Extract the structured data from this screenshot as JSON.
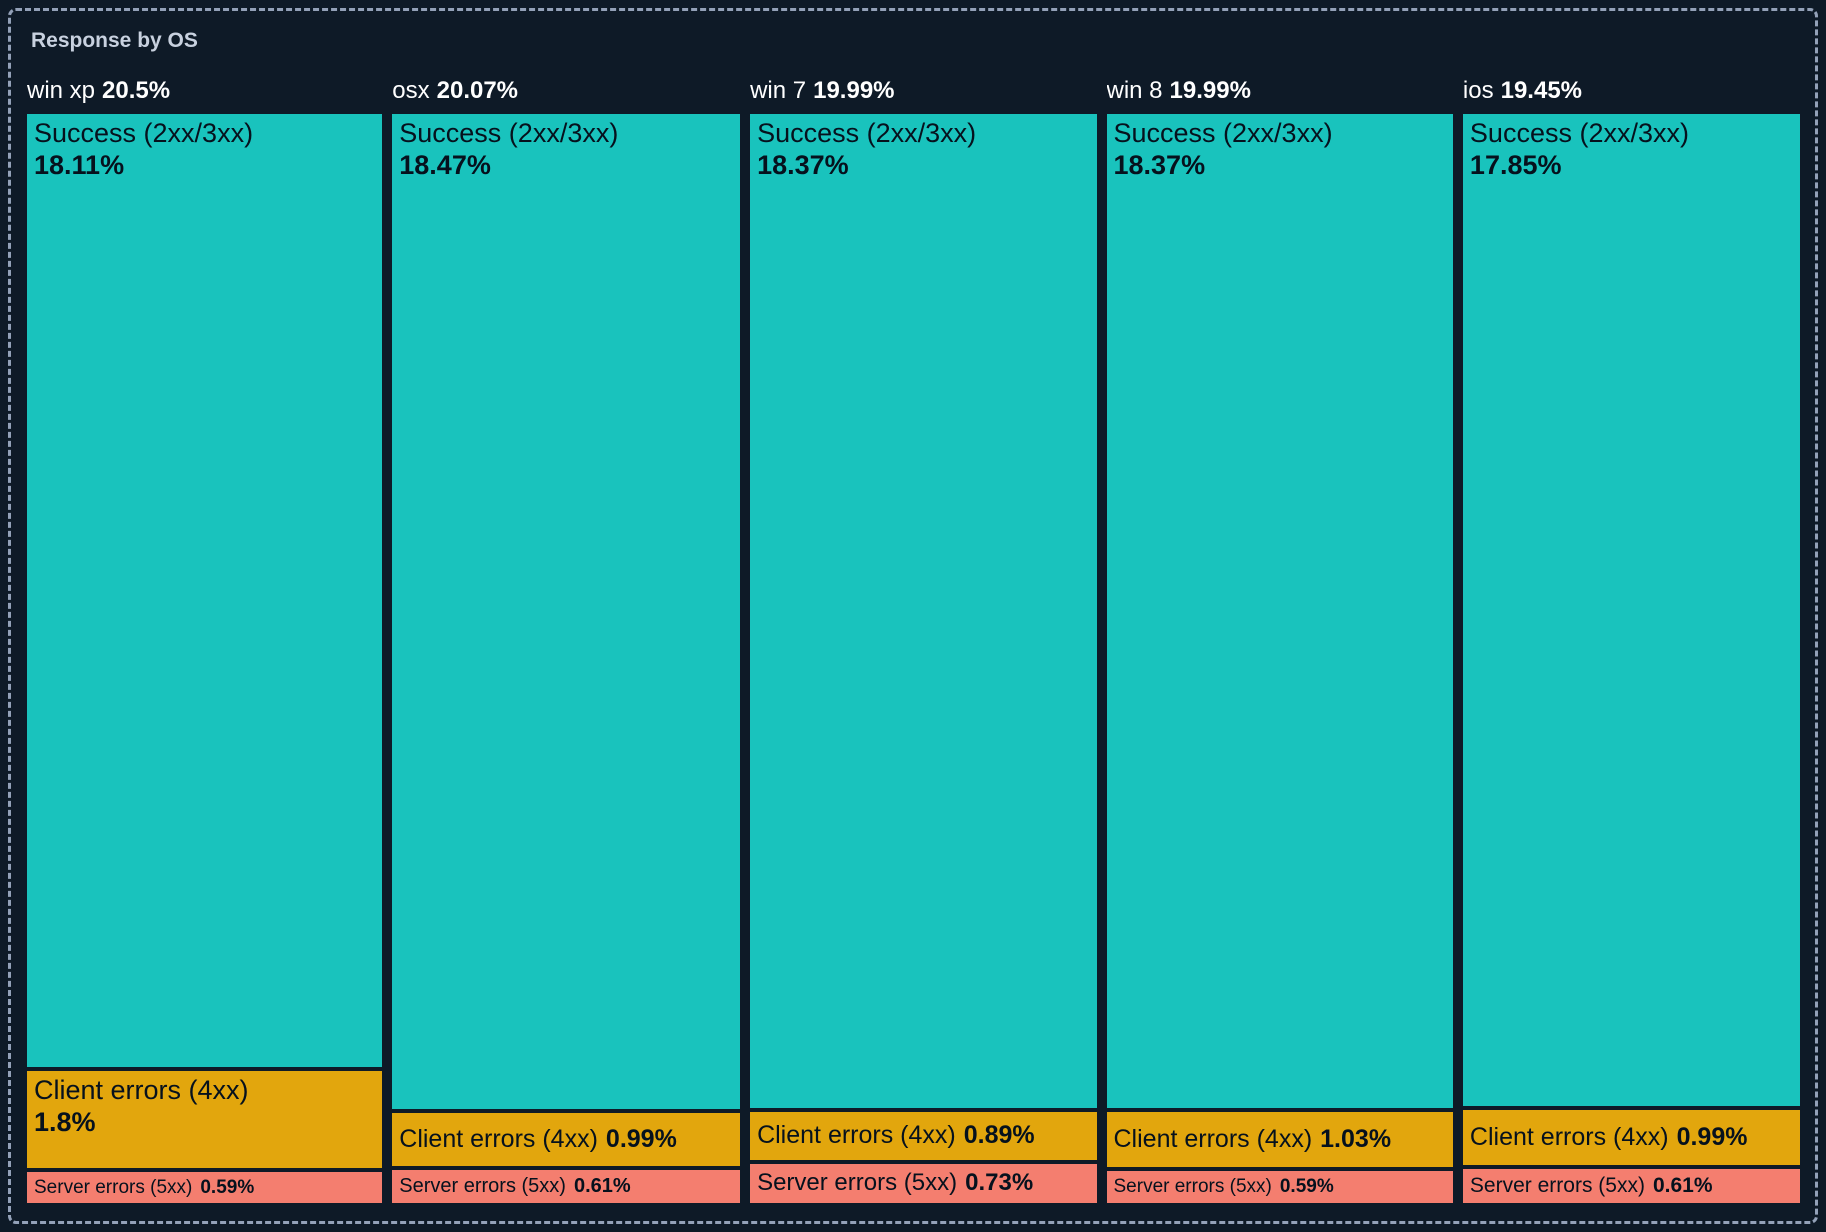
{
  "panel": {
    "title": "Response by OS",
    "border_style": "dashed-selection"
  },
  "colors": {
    "background": "#0e1a27",
    "panel_border": "#93a1b8",
    "title_text": "#c8d1df",
    "header_text": "#ffffff",
    "tile_text": "#06111d",
    "success": "#19c3bd",
    "client": "#e2a60d",
    "server": "#f47e6f"
  },
  "chart_data": {
    "type": "treemap",
    "title": "Response by OS",
    "legend_position": "none",
    "grid": false,
    "layout": "one column per OS; column width proportional to OS share; stacked tiles per response class, height proportional to value",
    "series_labels": [
      "Success (2xx/3xx)",
      "Client errors (4xx)",
      "Server errors (5xx)"
    ],
    "value_unit": "%",
    "columns": [
      {
        "label": "win xp",
        "total": 20.5,
        "total_display": "20.5%",
        "segments": [
          {
            "name": "Success (2xx/3xx)",
            "key": "success",
            "value": 18.11,
            "display": "18.11%"
          },
          {
            "name": "Client errors (4xx)",
            "key": "client",
            "value": 1.8,
            "display": "1.8%"
          },
          {
            "name": "Server errors (5xx)",
            "key": "server",
            "value": 0.59,
            "display": "0.59%"
          }
        ]
      },
      {
        "label": "osx",
        "total": 20.07,
        "total_display": "20.07%",
        "segments": [
          {
            "name": "Success (2xx/3xx)",
            "key": "success",
            "value": 18.47,
            "display": "18.47%"
          },
          {
            "name": "Client errors (4xx)",
            "key": "client",
            "value": 0.99,
            "display": "0.99%"
          },
          {
            "name": "Server errors (5xx)",
            "key": "server",
            "value": 0.61,
            "display": "0.61%"
          }
        ]
      },
      {
        "label": "win 7",
        "total": 19.99,
        "total_display": "19.99%",
        "segments": [
          {
            "name": "Success (2xx/3xx)",
            "key": "success",
            "value": 18.37,
            "display": "18.37%"
          },
          {
            "name": "Client errors (4xx)",
            "key": "client",
            "value": 0.89,
            "display": "0.89%"
          },
          {
            "name": "Server errors (5xx)",
            "key": "server",
            "value": 0.73,
            "display": "0.73%"
          }
        ]
      },
      {
        "label": "win 8",
        "total": 19.99,
        "total_display": "19.99%",
        "segments": [
          {
            "name": "Success (2xx/3xx)",
            "key": "success",
            "value": 18.37,
            "display": "18.37%"
          },
          {
            "name": "Client errors (4xx)",
            "key": "client",
            "value": 1.03,
            "display": "1.03%"
          },
          {
            "name": "Server errors (5xx)",
            "key": "server",
            "value": 0.59,
            "display": "0.59%"
          }
        ]
      },
      {
        "label": "ios",
        "total": 19.45,
        "total_display": "19.45%",
        "segments": [
          {
            "name": "Success (2xx/3xx)",
            "key": "success",
            "value": 17.85,
            "display": "17.85%"
          },
          {
            "name": "Client errors (4xx)",
            "key": "client",
            "value": 0.99,
            "display": "0.99%"
          },
          {
            "name": "Server errors (5xx)",
            "key": "server",
            "value": 0.61,
            "display": "0.61%"
          }
        ]
      }
    ]
  }
}
